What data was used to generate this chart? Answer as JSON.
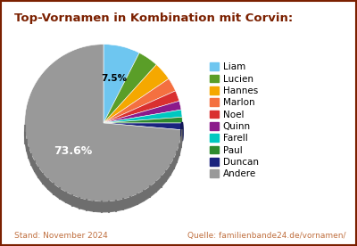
{
  "title": "Top-Vornamen in Kombination mit Corvin:",
  "labels": [
    "Liam",
    "Lucien",
    "Hannes",
    "Marlon",
    "Noel",
    "Quinn",
    "Farell",
    "Paul",
    "Duncan",
    "Andere"
  ],
  "values": [
    7.5,
    4.2,
    3.8,
    2.8,
    2.2,
    1.8,
    1.5,
    1.2,
    1.4,
    73.6
  ],
  "colors": [
    "#6ec6f0",
    "#5a9e28",
    "#f5a800",
    "#f47040",
    "#d93030",
    "#8b1a8b",
    "#00c8c0",
    "#2e8b2e",
    "#1a237e",
    "#999999"
  ],
  "depth_color": "#777777",
  "footer_left": "Stand: November 2024",
  "footer_right": "Quelle: familienbande24.de/vornamen/",
  "title_color": "#7b2000",
  "footer_color": "#c07040",
  "background_color": "#ffffff",
  "border_color": "#7b2000"
}
